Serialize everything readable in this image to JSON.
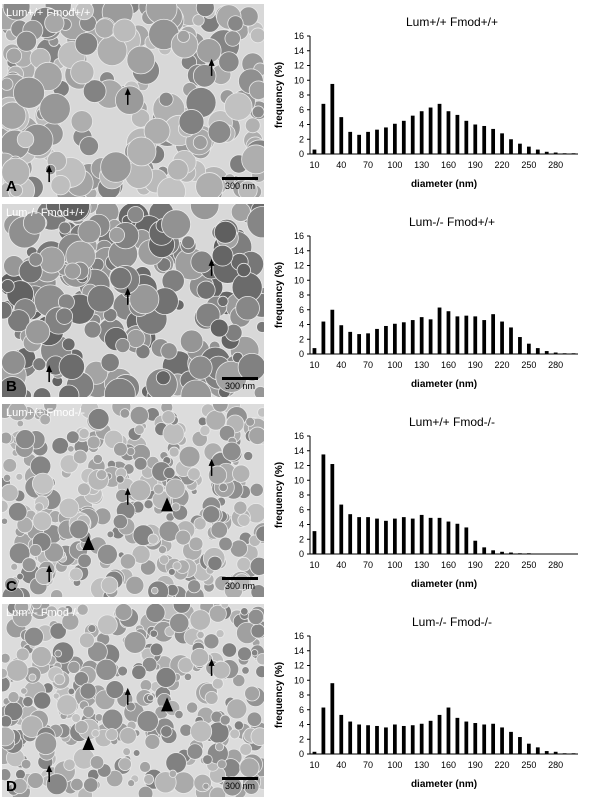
{
  "panels": [
    {
      "letter": "A",
      "micro_label": "Lum+/+ Fmod+/+",
      "scale_label": "300 nm",
      "chart_data": {
        "type": "bar",
        "title": "Lum+/+ Fmod+/+",
        "xlabel": "diameter  (nm)",
        "ylabel": "frequency  (%)",
        "ylim": [
          0,
          16
        ],
        "yticks": [
          0,
          2,
          4,
          6,
          8,
          10,
          12,
          14,
          16
        ],
        "xtick_labels": [
          "10",
          "40",
          "70",
          "100",
          "130",
          "160",
          "190",
          "220",
          "250",
          "280"
        ],
        "x": [
          10,
          20,
          30,
          40,
          50,
          60,
          70,
          80,
          90,
          100,
          110,
          120,
          130,
          140,
          150,
          160,
          170,
          180,
          190,
          200,
          210,
          220,
          230,
          240,
          250,
          260,
          270,
          280,
          290,
          300
        ],
        "values": [
          0.6,
          6.8,
          9.5,
          5.0,
          3.0,
          2.6,
          3.0,
          3.3,
          3.6,
          4.1,
          4.5,
          5.2,
          5.8,
          6.3,
          6.8,
          5.8,
          5.3,
          4.5,
          4.0,
          3.8,
          3.4,
          2.8,
          2.0,
          1.4,
          1.0,
          0.6,
          0.3,
          0.2,
          0.1,
          0.1
        ]
      }
    },
    {
      "letter": "B",
      "micro_label": "Lum-/- Fmod+/+",
      "scale_label": "300 nm",
      "chart_data": {
        "type": "bar",
        "title": "Lum-/- Fmod+/+",
        "xlabel": "diameter  (nm)",
        "ylabel": "frequency  (%)",
        "ylim": [
          0,
          16
        ],
        "yticks": [
          0,
          2,
          4,
          6,
          8,
          10,
          12,
          14,
          16
        ],
        "xtick_labels": [
          "10",
          "40",
          "70",
          "100",
          "130",
          "160",
          "190",
          "220",
          "250",
          "280"
        ],
        "x": [
          10,
          20,
          30,
          40,
          50,
          60,
          70,
          80,
          90,
          100,
          110,
          120,
          130,
          140,
          150,
          160,
          170,
          180,
          190,
          200,
          210,
          220,
          230,
          240,
          250,
          260,
          270,
          280,
          290,
          300
        ],
        "values": [
          0.8,
          4.4,
          6.0,
          3.9,
          3.0,
          2.7,
          2.8,
          3.4,
          3.8,
          4.1,
          4.3,
          4.6,
          5.0,
          4.7,
          6.3,
          5.8,
          5.1,
          5.2,
          5.1,
          4.6,
          5.4,
          4.4,
          3.6,
          2.3,
          1.4,
          0.8,
          0.4,
          0.2,
          0.1,
          0.1
        ]
      }
    },
    {
      "letter": "C",
      "micro_label": "Lum+/+ Fmod-/-",
      "scale_label": "300 nm",
      "chart_data": {
        "type": "bar",
        "title": "Lum+/+ Fmod-/-",
        "xlabel": "diameter  (nm)",
        "ylabel": "frequency  (%)",
        "ylim": [
          0,
          16
        ],
        "yticks": [
          0,
          2,
          4,
          6,
          8,
          10,
          12,
          14,
          16
        ],
        "xtick_labels": [
          "10",
          "40",
          "70",
          "100",
          "130",
          "160",
          "190",
          "220",
          "250",
          "280"
        ],
        "x": [
          10,
          20,
          30,
          40,
          50,
          60,
          70,
          80,
          90,
          100,
          110,
          120,
          130,
          140,
          150,
          160,
          170,
          180,
          190,
          200,
          210,
          220,
          230,
          240,
          250,
          260,
          270,
          280,
          290,
          300
        ],
        "values": [
          3.1,
          13.5,
          12.2,
          6.7,
          5.4,
          5.0,
          5.0,
          4.8,
          4.5,
          4.8,
          5.0,
          4.8,
          5.3,
          4.9,
          4.9,
          4.4,
          4.1,
          3.6,
          1.8,
          0.9,
          0.5,
          0.3,
          0.2,
          0.1,
          0.1,
          0,
          0,
          0,
          0,
          0
        ]
      }
    },
    {
      "letter": "D",
      "micro_label": "Lum-/- Fmod-/-",
      "scale_label": "300 nm",
      "chart_data": {
        "type": "bar",
        "title": "Lum-/- Fmod-/-",
        "xlabel": "diameter  (nm)",
        "ylabel": "frequency  (%)",
        "ylim": [
          0,
          16
        ],
        "yticks": [
          0,
          2,
          4,
          6,
          8,
          10,
          12,
          14,
          16
        ],
        "xtick_labels": [
          "10",
          "40",
          "70",
          "100",
          "130",
          "160",
          "190",
          "220",
          "250",
          "280"
        ],
        "x": [
          10,
          20,
          30,
          40,
          50,
          60,
          70,
          80,
          90,
          100,
          110,
          120,
          130,
          140,
          150,
          160,
          170,
          180,
          190,
          200,
          210,
          220,
          230,
          240,
          250,
          260,
          270,
          280,
          290,
          300
        ],
        "values": [
          0.3,
          6.3,
          9.6,
          5.3,
          4.4,
          4.0,
          3.9,
          3.8,
          3.6,
          4.0,
          3.8,
          3.9,
          4.1,
          4.5,
          5.3,
          6.3,
          4.9,
          4.4,
          4.2,
          4.0,
          4.1,
          3.6,
          3.0,
          2.3,
          1.4,
          0.9,
          0.4,
          0.3,
          0.1,
          0.1
        ]
      }
    }
  ]
}
